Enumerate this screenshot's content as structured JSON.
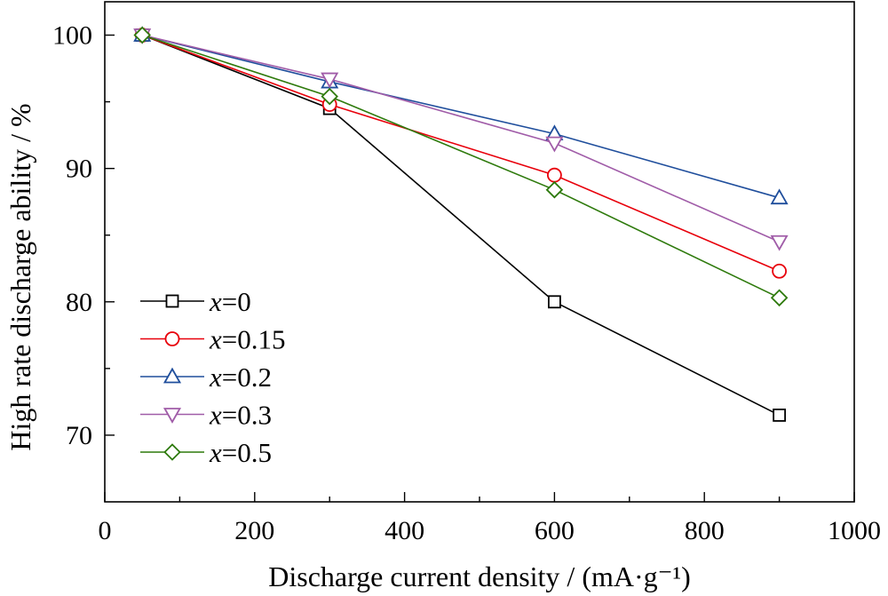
{
  "chart_data": {
    "type": "line",
    "xlabel": "Discharge current density / (mA·g⁻¹)",
    "ylabel": "High rate discharge ability / %",
    "xlim": [
      0,
      1000
    ],
    "ylim": [
      65,
      102.5
    ],
    "xticks": [
      0,
      200,
      400,
      600,
      800,
      1000
    ],
    "yticks": [
      70,
      80,
      90,
      100
    ],
    "grid": false,
    "legend_position": "bottom-left",
    "x": [
      50,
      300,
      600,
      900
    ],
    "series": [
      {
        "name": "x=0",
        "prefix": "x",
        "suffix": "=0",
        "color": "#000000",
        "marker": "square",
        "values": [
          100,
          94.5,
          80.0,
          71.5
        ]
      },
      {
        "name": "x=0.15",
        "prefix": "x",
        "suffix": "=0.15",
        "color": "#e8000b",
        "marker": "circle",
        "values": [
          100,
          94.8,
          89.5,
          82.3
        ]
      },
      {
        "name": "x=0.2",
        "prefix": "x",
        "suffix": "=0.2",
        "color": "#1f4e9c",
        "marker": "triangle-up",
        "values": [
          100,
          96.5,
          92.6,
          87.8
        ]
      },
      {
        "name": "x=0.3",
        "prefix": "x",
        "suffix": "=0.3",
        "color": "#a05ca8",
        "marker": "triangle-down",
        "values": [
          100,
          96.7,
          91.9,
          84.5
        ]
      },
      {
        "name": "x=0.5",
        "prefix": "x",
        "suffix": "=0.5",
        "color": "#2e7a0c",
        "marker": "diamond",
        "values": [
          100,
          95.4,
          88.4,
          80.3
        ]
      }
    ]
  }
}
